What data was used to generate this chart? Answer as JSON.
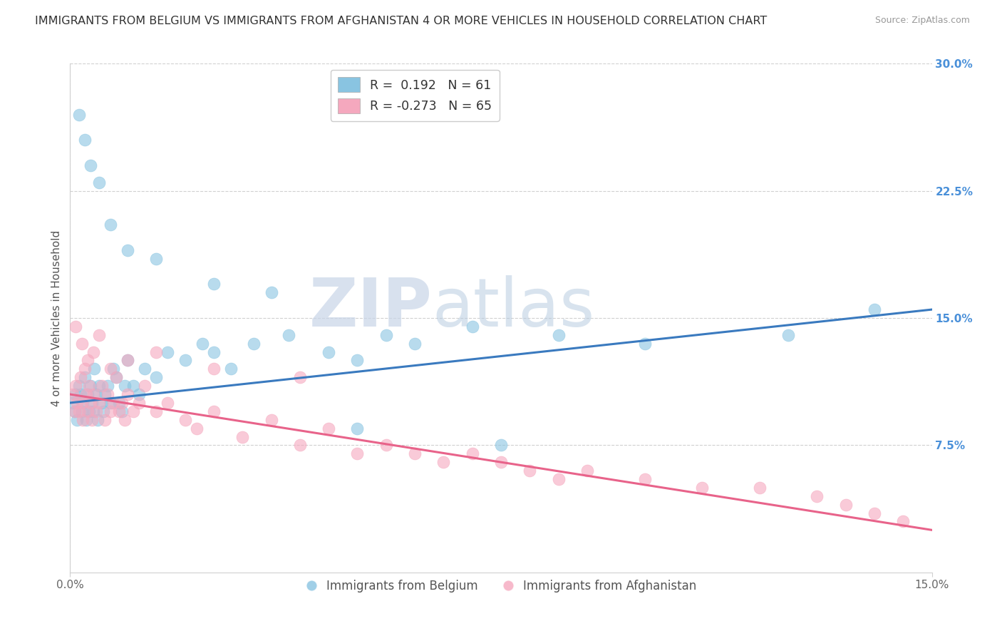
{
  "title": "IMMIGRANTS FROM BELGIUM VS IMMIGRANTS FROM AFGHANISTAN 4 OR MORE VEHICLES IN HOUSEHOLD CORRELATION CHART",
  "source": "Source: ZipAtlas.com",
  "ylabel": "4 or more Vehicles in Household",
  "legend_labels": [
    "Immigrants from Belgium",
    "Immigrants from Afghanistan"
  ],
  "r_belgium": 0.192,
  "n_belgium": 61,
  "r_afghanistan": -0.273,
  "n_afghanistan": 65,
  "blue_color": "#89c4e1",
  "pink_color": "#f5a8be",
  "blue_line_color": "#3a7abf",
  "pink_line_color": "#e8638a",
  "xmin": 0.0,
  "xmax": 15.0,
  "ymin": 0.0,
  "ymax": 30.0,
  "yticks": [
    7.5,
    15.0,
    22.5,
    30.0
  ],
  "background_color": "#ffffff",
  "grid_color": "#d0d0d0",
  "title_fontsize": 11.5,
  "axis_label_fontsize": 11,
  "tick_fontsize": 11,
  "belgium_x": [
    0.05,
    0.08,
    0.1,
    0.12,
    0.15,
    0.18,
    0.2,
    0.22,
    0.25,
    0.28,
    0.3,
    0.33,
    0.35,
    0.38,
    0.4,
    0.42,
    0.45,
    0.48,
    0.5,
    0.55,
    0.58,
    0.6,
    0.65,
    0.7,
    0.75,
    0.8,
    0.85,
    0.9,
    0.95,
    1.0,
    1.1,
    1.2,
    1.3,
    1.5,
    1.7,
    2.0,
    2.3,
    2.5,
    2.8,
    3.2,
    3.8,
    4.5,
    5.0,
    5.5,
    6.0,
    7.0,
    8.5,
    10.0,
    12.5,
    14.0,
    0.15,
    0.25,
    0.35,
    0.5,
    0.7,
    1.0,
    1.5,
    2.5,
    3.5,
    5.0,
    7.5
  ],
  "belgium_y": [
    10.0,
    9.5,
    10.5,
    9.0,
    11.0,
    10.5,
    9.5,
    10.0,
    11.5,
    9.0,
    10.5,
    9.5,
    11.0,
    10.0,
    9.5,
    12.0,
    10.5,
    9.0,
    11.0,
    10.0,
    9.5,
    10.5,
    11.0,
    10.0,
    12.0,
    11.5,
    10.0,
    9.5,
    11.0,
    12.5,
    11.0,
    10.5,
    12.0,
    11.5,
    13.0,
    12.5,
    13.5,
    13.0,
    12.0,
    13.5,
    14.0,
    13.0,
    12.5,
    14.0,
    13.5,
    14.5,
    14.0,
    13.5,
    14.0,
    15.5,
    27.0,
    25.5,
    24.0,
    23.0,
    20.5,
    19.0,
    18.5,
    17.0,
    16.5,
    8.5,
    7.5
  ],
  "afghanistan_x": [
    0.05,
    0.08,
    0.1,
    0.12,
    0.15,
    0.18,
    0.2,
    0.22,
    0.25,
    0.28,
    0.3,
    0.33,
    0.35,
    0.38,
    0.4,
    0.45,
    0.5,
    0.55,
    0.6,
    0.65,
    0.7,
    0.75,
    0.8,
    0.85,
    0.9,
    0.95,
    1.0,
    1.1,
    1.2,
    1.3,
    1.5,
    1.7,
    2.0,
    2.2,
    2.5,
    3.0,
    3.5,
    4.0,
    4.5,
    5.0,
    5.5,
    6.0,
    6.5,
    7.0,
    7.5,
    8.0,
    8.5,
    9.0,
    10.0,
    11.0,
    12.0,
    13.0,
    13.5,
    14.0,
    14.5,
    0.1,
    0.2,
    0.3,
    0.4,
    0.5,
    0.7,
    1.0,
    1.5,
    2.5,
    4.0
  ],
  "afghanistan_y": [
    10.5,
    9.5,
    11.0,
    10.0,
    9.5,
    11.5,
    10.0,
    9.0,
    12.0,
    10.5,
    9.5,
    11.0,
    10.0,
    9.0,
    10.5,
    9.5,
    10.0,
    11.0,
    9.0,
    10.5,
    9.5,
    10.0,
    11.5,
    9.5,
    10.0,
    9.0,
    10.5,
    9.5,
    10.0,
    11.0,
    9.5,
    10.0,
    9.0,
    8.5,
    9.5,
    8.0,
    9.0,
    7.5,
    8.5,
    7.0,
    7.5,
    7.0,
    6.5,
    7.0,
    6.5,
    6.0,
    5.5,
    6.0,
    5.5,
    5.0,
    5.0,
    4.5,
    4.0,
    3.5,
    3.0,
    14.5,
    13.5,
    12.5,
    13.0,
    14.0,
    12.0,
    12.5,
    13.0,
    12.0,
    11.5
  ]
}
